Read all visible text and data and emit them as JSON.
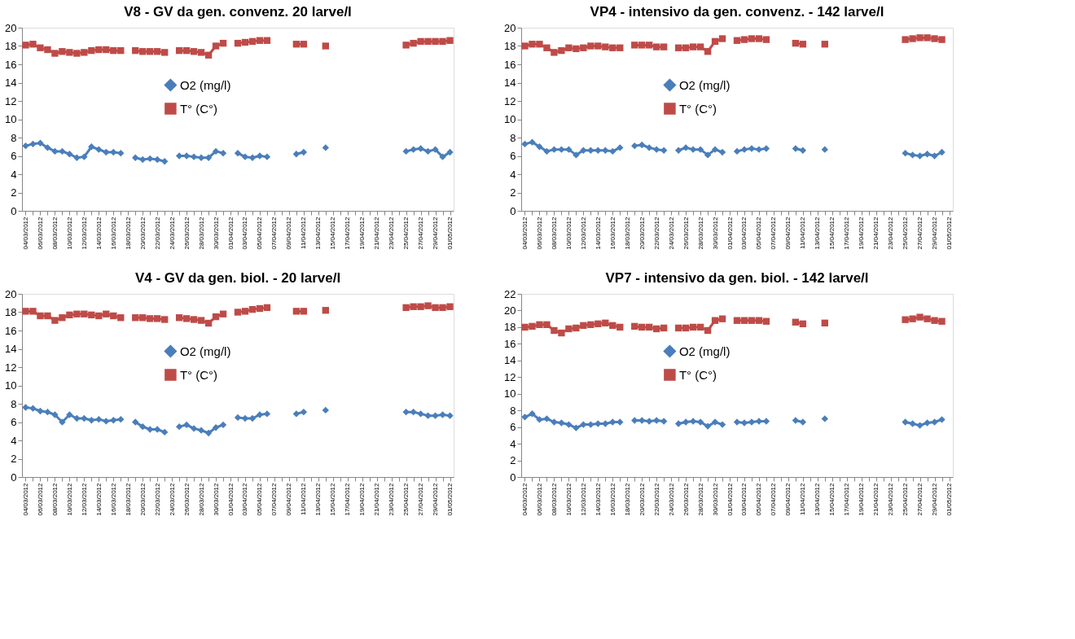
{
  "chart_data": [
    {
      "type": "line",
      "title": "V8 - GV da gen. convenz. 20 larve/l",
      "categories": [
        "04/03/2012",
        null,
        "06/03/2012",
        null,
        "08/03/2012",
        null,
        "10/03/2012",
        null,
        "12/03/2012",
        null,
        "14/03/2012",
        null,
        "16/03/2012",
        null,
        "18/03/2012",
        null,
        "20/03/2012",
        null,
        "22/03/2012",
        null,
        "24/03/2012",
        null,
        "26/03/2012",
        null,
        "28/03/2012",
        null,
        "30/03/2012",
        null,
        "01/04/2012",
        null,
        "03/04/2012",
        null,
        "05/04/2012",
        null,
        "07/04/2012",
        null,
        "09/04/2012",
        null,
        "11/04/2012",
        null,
        "13/04/2012",
        null,
        "15/04/2012",
        null,
        "17/04/2012",
        null,
        "19/04/2012",
        null,
        "21/04/2012",
        null,
        "23/04/2012",
        null,
        "25/04/2012",
        null,
        "27/04/2012",
        null,
        "29/04/2012",
        null,
        "01/05/2012"
      ],
      "ylim": [
        0,
        20
      ],
      "yticks": [
        0,
        2,
        4,
        6,
        8,
        10,
        12,
        14,
        16,
        18,
        20
      ],
      "grid": false,
      "legend": "center",
      "line_style": "solid",
      "series": [
        {
          "name": "O2 (mg/l)",
          "color": "#4a7ebb",
          "marker": "diamond",
          "values": [
            7.1,
            7.3,
            7.4,
            6.9,
            6.5,
            6.5,
            6.2,
            5.8,
            5.9,
            7.0,
            6.7,
            6.4,
            6.4,
            6.3,
            null,
            5.8,
            5.6,
            5.7,
            5.6,
            5.4,
            null,
            6.0,
            6.0,
            5.9,
            5.8,
            5.8,
            6.5,
            6.3,
            null,
            6.3,
            5.9,
            5.8,
            6.0,
            5.9,
            null,
            null,
            null,
            6.2,
            6.4,
            null,
            null,
            6.9,
            null,
            null,
            null,
            null,
            null,
            null,
            null,
            null,
            null,
            null,
            6.5,
            6.7,
            6.8,
            6.5,
            6.7,
            5.9,
            6.4
          ]
        },
        {
          "name": "T° (C°)",
          "color": "#be4b48",
          "marker": "square",
          "values": [
            18.1,
            18.2,
            17.8,
            17.6,
            17.2,
            17.4,
            17.3,
            17.2,
            17.3,
            17.5,
            17.6,
            17.6,
            17.5,
            17.5,
            null,
            17.5,
            17.4,
            17.4,
            17.4,
            17.3,
            null,
            17.5,
            17.5,
            17.4,
            17.3,
            17.0,
            18.0,
            18.3,
            null,
            18.3,
            18.4,
            18.5,
            18.6,
            18.6,
            null,
            null,
            null,
            18.2,
            18.2,
            null,
            null,
            18.0,
            null,
            null,
            null,
            null,
            null,
            null,
            null,
            null,
            null,
            null,
            18.1,
            18.3,
            18.5,
            18.5,
            18.5,
            18.5,
            18.6
          ]
        }
      ]
    },
    {
      "type": "line",
      "title": "VP4 -  intensivo da gen. convenz. - 142 larve/l",
      "categories": [
        "04/03/2012",
        null,
        "06/03/2012",
        null,
        "08/03/2012",
        null,
        "10/03/2012",
        null,
        "12/03/2012",
        null,
        "14/03/2012",
        null,
        "16/03/2012",
        null,
        "18/03/2012",
        null,
        "20/03/2012",
        null,
        "22/03/2012",
        null,
        "24/03/2012",
        null,
        "26/03/2012",
        null,
        "28/03/2012",
        null,
        "30/03/2012",
        null,
        "01/04/2012",
        null,
        "03/04/2012",
        null,
        "05/04/2012",
        null,
        "07/04/2012",
        null,
        "09/04/2012",
        null,
        "11/04/2012",
        null,
        "13/04/2012",
        null,
        "15/04/2012",
        null,
        "17/04/2012",
        null,
        "19/04/2012",
        null,
        "21/04/2012",
        null,
        "23/04/2012",
        null,
        "25/04/2012",
        null,
        "27/04/2012",
        null,
        "29/04/2012",
        null,
        "01/05/2012"
      ],
      "ylim": [
        0,
        20
      ],
      "yticks": [
        0,
        2,
        4,
        6,
        8,
        10,
        12,
        14,
        16,
        18,
        20
      ],
      "grid": false,
      "legend": "center",
      "line_style": "solid",
      "series": [
        {
          "name": "O2 (mg/l)",
          "color": "#4a7ebb",
          "marker": "diamond",
          "values": [
            7.3,
            7.5,
            7.0,
            6.5,
            6.7,
            6.7,
            6.7,
            6.1,
            6.6,
            6.6,
            6.6,
            6.6,
            6.5,
            6.9,
            null,
            7.1,
            7.2,
            6.9,
            6.7,
            6.6,
            null,
            6.6,
            6.9,
            6.7,
            6.7,
            6.1,
            6.7,
            6.4,
            null,
            6.5,
            6.7,
            6.8,
            6.7,
            6.8,
            null,
            null,
            null,
            6.8,
            6.6,
            null,
            null,
            6.7,
            null,
            null,
            null,
            null,
            null,
            null,
            null,
            null,
            null,
            null,
            6.3,
            6.1,
            6.0,
            6.2,
            6.0,
            6.4,
            null
          ]
        },
        {
          "name": "T° (C°)",
          "color": "#be4b48",
          "marker": "square",
          "values": [
            18.0,
            18.2,
            18.2,
            17.8,
            17.3,
            17.5,
            17.8,
            17.7,
            17.8,
            18.0,
            18.0,
            17.9,
            17.8,
            17.8,
            null,
            18.1,
            18.1,
            18.1,
            17.9,
            17.9,
            null,
            17.8,
            17.8,
            17.9,
            17.9,
            17.4,
            18.5,
            18.8,
            null,
            18.6,
            18.7,
            18.8,
            18.8,
            18.7,
            null,
            null,
            null,
            18.3,
            18.2,
            null,
            null,
            18.2,
            null,
            null,
            null,
            null,
            null,
            null,
            null,
            null,
            null,
            null,
            18.7,
            18.8,
            18.9,
            18.9,
            18.8,
            18.7,
            null
          ]
        }
      ]
    },
    {
      "type": "line",
      "title": "V4 - GV da gen. biol. - 20 larve/l",
      "categories": [
        "04/03/2012",
        null,
        "06/03/2012",
        null,
        "08/03/2012",
        null,
        "10/03/2012",
        null,
        "12/03/2012",
        null,
        "14/03/2012",
        null,
        "16/03/2012",
        null,
        "18/03/2012",
        null,
        "20/03/2012",
        null,
        "22/03/2012",
        null,
        "24/03/2012",
        null,
        "26/03/2012",
        null,
        "28/03/2012",
        null,
        "30/03/2012",
        null,
        "01/04/2012",
        null,
        "03/04/2012",
        null,
        "05/04/2012",
        null,
        "07/04/2012",
        null,
        "09/04/2012",
        null,
        "11/04/2012",
        null,
        "13/04/2012",
        null,
        "15/04/2012",
        null,
        "17/04/2012",
        null,
        "19/04/2012",
        null,
        "21/04/2012",
        null,
        "23/04/2012",
        null,
        "25/04/2012",
        null,
        "27/04/2012",
        null,
        "29/04/2012",
        null,
        "01/05/2012"
      ],
      "ylim": [
        0,
        20
      ],
      "yticks": [
        0,
        2,
        4,
        6,
        8,
        10,
        12,
        14,
        16,
        18,
        20
      ],
      "grid": false,
      "legend": "center",
      "line_style": "solid",
      "series": [
        {
          "name": "O2 (mg/l)",
          "color": "#4a7ebb",
          "marker": "diamond",
          "values": [
            7.6,
            7.5,
            7.2,
            7.1,
            6.8,
            6.0,
            6.8,
            6.4,
            6.4,
            6.2,
            6.3,
            6.1,
            6.2,
            6.3,
            null,
            6.0,
            5.5,
            5.2,
            5.2,
            4.9,
            null,
            5.5,
            5.7,
            5.3,
            5.1,
            4.8,
            5.4,
            5.7,
            null,
            6.5,
            6.4,
            6.4,
            6.8,
            6.9,
            null,
            null,
            null,
            6.9,
            7.1,
            null,
            null,
            7.3,
            null,
            null,
            null,
            null,
            null,
            null,
            null,
            null,
            null,
            null,
            7.1,
            7.1,
            6.9,
            6.7,
            6.7,
            6.8,
            6.7
          ]
        },
        {
          "name": "T° (C°)",
          "color": "#be4b48",
          "marker": "square",
          "values": [
            18.1,
            18.1,
            17.6,
            17.6,
            17.1,
            17.4,
            17.7,
            17.8,
            17.8,
            17.7,
            17.6,
            17.8,
            17.6,
            17.4,
            null,
            17.4,
            17.4,
            17.3,
            17.3,
            17.2,
            null,
            17.4,
            17.3,
            17.2,
            17.1,
            16.8,
            17.5,
            17.8,
            null,
            18.0,
            18.1,
            18.3,
            18.4,
            18.5,
            null,
            null,
            null,
            18.1,
            18.1,
            null,
            null,
            18.2,
            null,
            null,
            null,
            null,
            null,
            null,
            null,
            null,
            null,
            null,
            18.5,
            18.6,
            18.6,
            18.7,
            18.5,
            18.5,
            18.6
          ]
        }
      ]
    },
    {
      "type": "line",
      "title": "VP7 - intensivo da gen. biol. - 142 larve/l",
      "categories": [
        "04/03/2012",
        null,
        "06/03/2012",
        null,
        "08/03/2012",
        null,
        "10/03/2012",
        null,
        "12/03/2012",
        null,
        "14/03/2012",
        null,
        "16/03/2012",
        null,
        "18/03/2012",
        null,
        "20/03/2012",
        null,
        "22/03/2012",
        null,
        "24/03/2012",
        null,
        "26/03/2012",
        null,
        "28/03/2012",
        null,
        "30/03/2012",
        null,
        "01/04/2012",
        null,
        "03/04/2012",
        null,
        "05/04/2012",
        null,
        "07/04/2012",
        null,
        "09/04/2012",
        null,
        "11/04/2012",
        null,
        "13/04/2012",
        null,
        "15/04/2012",
        null,
        "17/04/2012",
        null,
        "19/04/2012",
        null,
        "21/04/2012",
        null,
        "23/04/2012",
        null,
        "25/04/2012",
        null,
        "27/04/2012",
        null,
        "29/04/2012",
        null,
        "01/05/2012"
      ],
      "ylim": [
        0,
        22
      ],
      "yticks": [
        0,
        2,
        4,
        6,
        8,
        10,
        12,
        14,
        16,
        18,
        20,
        22
      ],
      "grid": false,
      "legend": "center",
      "line_style": "solid",
      "series": [
        {
          "name": "O2 (mg/l)",
          "color": "#4a7ebb",
          "marker": "diamond",
          "values": [
            7.2,
            7.6,
            6.9,
            7.0,
            6.6,
            6.5,
            6.3,
            5.9,
            6.3,
            6.3,
            6.4,
            6.4,
            6.6,
            6.6,
            null,
            6.8,
            6.8,
            6.7,
            6.8,
            6.7,
            null,
            6.4,
            6.6,
            6.7,
            6.6,
            6.1,
            6.6,
            6.3,
            null,
            6.6,
            6.5,
            6.6,
            6.7,
            6.7,
            null,
            null,
            null,
            6.8,
            6.6,
            null,
            null,
            7.0,
            null,
            null,
            null,
            null,
            null,
            null,
            null,
            null,
            null,
            null,
            6.6,
            6.4,
            6.2,
            6.5,
            6.6,
            6.9,
            null
          ]
        },
        {
          "name": "T° (C°)",
          "color": "#be4b48",
          "marker": "square",
          "values": [
            18.0,
            18.1,
            18.3,
            18.3,
            17.6,
            17.3,
            17.8,
            17.9,
            18.2,
            18.3,
            18.4,
            18.5,
            18.2,
            18.0,
            null,
            18.1,
            18.0,
            18.0,
            17.8,
            17.9,
            null,
            17.9,
            17.9,
            18.0,
            18.0,
            17.6,
            18.8,
            19.0,
            null,
            18.8,
            18.8,
            18.8,
            18.8,
            18.7,
            null,
            null,
            null,
            18.6,
            18.4,
            null,
            null,
            18.5,
            null,
            null,
            null,
            null,
            null,
            null,
            null,
            null,
            null,
            null,
            18.9,
            19.0,
            19.2,
            19.0,
            18.8,
            18.7,
            null
          ]
        }
      ]
    }
  ]
}
